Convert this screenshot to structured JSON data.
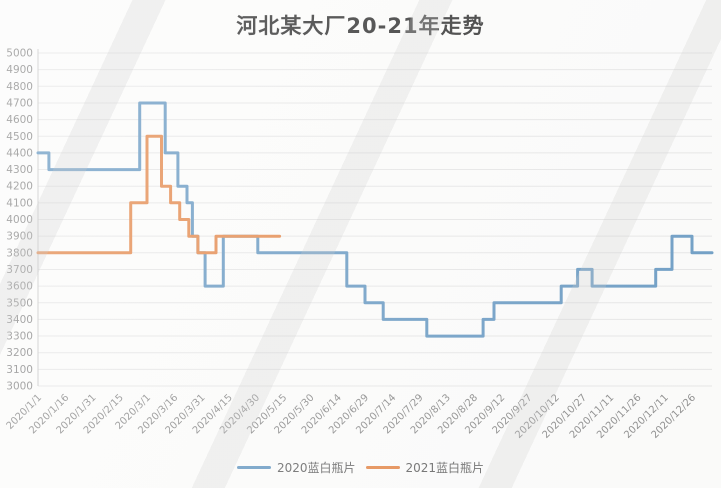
{
  "title": "河北某大厂20-21年走势",
  "colors": {
    "series_2020": "#5d92be",
    "series_2021": "#e28140",
    "grid": "#e3e3e3",
    "axis": "#c4c4c4",
    "tick_label": "#808080",
    "title_text": "#1f1f1f"
  },
  "chart_data": {
    "type": "line",
    "line_style": "step-after",
    "title": "河北某大厂20-21年走势",
    "xlabel": "",
    "ylabel": "",
    "ylim": [
      3000,
      5000
    ],
    "y_tick_step": 100,
    "grid": "horizontal",
    "legend_position": "bottom",
    "x_tick_labels": [
      "2020/1/1",
      "2020/1/16",
      "2020/1/31",
      "2020/2/15",
      "2020/3/1",
      "2020/3/16",
      "2020/3/31",
      "2020/4/15",
      "2020/4/30",
      "2020/5/15",
      "2020/5/30",
      "2020/6/14",
      "2020/6/29",
      "2020/7/14",
      "2020/7/29",
      "2020/8/13",
      "2020/8/28",
      "2020/9/12",
      "2020/9/27",
      "2020/10/12",
      "2020/10/27",
      "2020/11/11",
      "2020/11/26",
      "2020/12/11",
      "2020/12/26"
    ],
    "x_days_per_tick": 15,
    "x_total_days": 372,
    "series": [
      {
        "name": "2020蓝白瓶片",
        "color": "#5d92be",
        "points_day_value": [
          [
            1,
            4400
          ],
          [
            7,
            4300
          ],
          [
            57,
            4700
          ],
          [
            71,
            4400
          ],
          [
            78,
            4200
          ],
          [
            83,
            4100
          ],
          [
            86,
            3900
          ],
          [
            89,
            3800
          ],
          [
            93,
            3600
          ],
          [
            103,
            3900
          ],
          [
            122,
            3800
          ],
          [
            171,
            3600
          ],
          [
            181,
            3500
          ],
          [
            191,
            3400
          ],
          [
            215,
            3300
          ],
          [
            246,
            3400
          ],
          [
            252,
            3500
          ],
          [
            289,
            3600
          ],
          [
            298,
            3700
          ],
          [
            306,
            3600
          ],
          [
            341,
            3700
          ],
          [
            350,
            3900
          ],
          [
            361,
            3800
          ],
          [
            372,
            3800
          ]
        ]
      },
      {
        "name": "2021蓝白瓶片",
        "color": "#e28140",
        "points_day_value": [
          [
            1,
            3800
          ],
          [
            52,
            4100
          ],
          [
            61,
            4500
          ],
          [
            69,
            4200
          ],
          [
            74,
            4100
          ],
          [
            79,
            4000
          ],
          [
            84,
            3900
          ],
          [
            89,
            3800
          ],
          [
            99,
            3900
          ],
          [
            134,
            3900
          ]
        ]
      }
    ]
  }
}
